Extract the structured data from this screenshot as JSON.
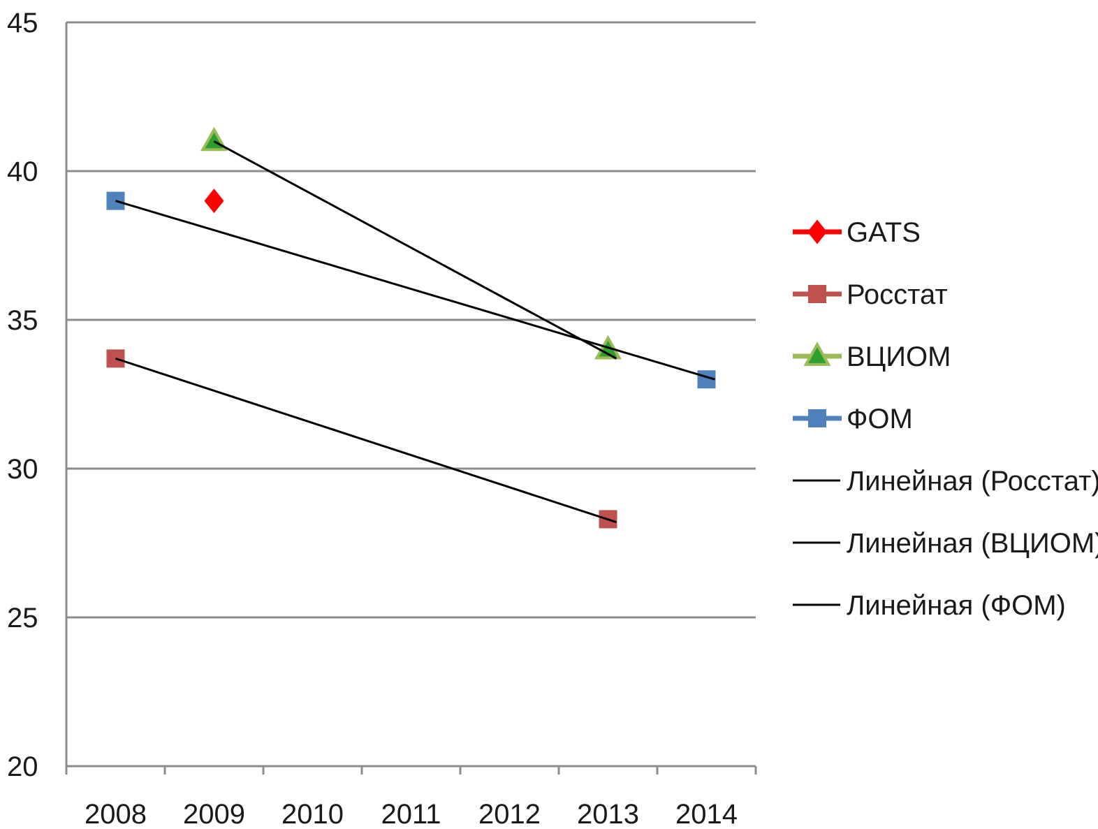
{
  "chart_data": {
    "type": "scatter",
    "title": "",
    "xlabel": "",
    "ylabel": "",
    "categories": [
      "2008",
      "2009",
      "2010",
      "2011",
      "2012",
      "2013",
      "2014"
    ],
    "ylim": [
      20,
      45
    ],
    "yticks": [
      20,
      25,
      30,
      35,
      40,
      45
    ],
    "grid": true,
    "legend_position": "right",
    "series": [
      {
        "name": "GATS",
        "marker": "diamond",
        "color": "#ff0000",
        "points": [
          {
            "x": "2009",
            "y": 39.0
          }
        ]
      },
      {
        "name": "Росстат",
        "marker": "square",
        "color": "#c0504d",
        "points": [
          {
            "x": "2008",
            "y": 33.7
          },
          {
            "x": "2013",
            "y": 28.3
          }
        ]
      },
      {
        "name": "ВЦИОМ",
        "marker": "triangle",
        "color": "#2e9e2e",
        "line_color": "#9bbb59",
        "points": [
          {
            "x": "2009",
            "y": 41.0
          },
          {
            "x": "2013",
            "y": 34.0
          }
        ]
      },
      {
        "name": "ФОМ",
        "marker": "square",
        "color": "#4f81bd",
        "points": [
          {
            "x": "2008",
            "y": 39.0
          },
          {
            "x": "2014",
            "y": 33.0
          }
        ]
      }
    ],
    "trendlines": [
      {
        "name": "Линейная (Росстат)",
        "color": "#000000",
        "from": {
          "x": "2008",
          "y": 33.7
        },
        "to": {
          "x": "2013",
          "y": 28.2
        }
      },
      {
        "name": "Линейная (ВЦИОМ)",
        "color": "#000000",
        "from": {
          "x": "2009",
          "y": 41.0
        },
        "to": {
          "x": "2013",
          "y": 33.7
        }
      },
      {
        "name": "Линейная (ФОМ)",
        "color": "#000000",
        "from": {
          "x": "2008",
          "y": 39.0
        },
        "to": {
          "x": "2014",
          "y": 33.0
        }
      }
    ]
  }
}
